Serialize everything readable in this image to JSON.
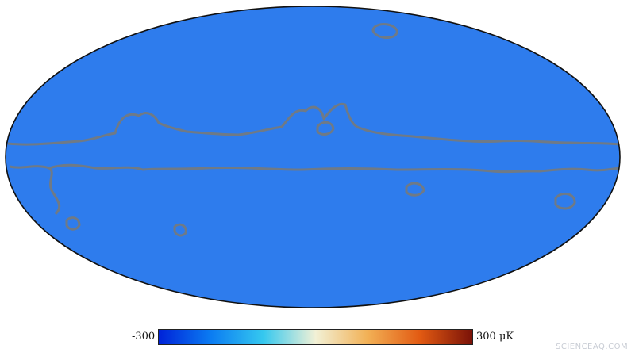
{
  "colorbar": {
    "min_label": "-300",
    "max_label": "300 μK",
    "stops": [
      "#0022d8",
      "#0b7cf2",
      "#35c8ef",
      "#f2f1d6",
      "#f2b055",
      "#e25a12",
      "#7a1208"
    ]
  },
  "map": {
    "projection": "mollweide",
    "mask_contour_color": "#6f7a86"
  },
  "watermark": {
    "text": "SCIENCEAQ.COM"
  }
}
